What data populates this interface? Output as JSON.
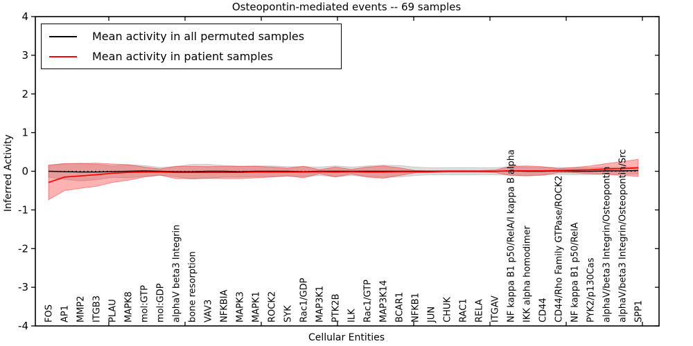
{
  "figure": {
    "title": "Osteopontin-mediated events -- 69 samples",
    "xlabel": "Cellular Entities",
    "ylabel": "Inferred Activity"
  },
  "legend": {
    "items": [
      {
        "label": "Mean activity in all permuted samples",
        "color": "#000000"
      },
      {
        "label": "Mean activity in patient samples",
        "color": "#ff0000"
      }
    ]
  },
  "chart_data": {
    "type": "line",
    "title": "Osteopontin-mediated events -- 69 samples",
    "xlabel": "Cellular Entities",
    "ylabel": "Inferred Activity",
    "ylim": [
      -4,
      4
    ],
    "yticks": [
      4,
      3,
      2,
      1,
      0,
      -1,
      -2,
      -3,
      -4
    ],
    "grid": false,
    "legend_position": "upper left",
    "zero_line": {
      "style": "dotted",
      "color": "#000000",
      "y": 0
    },
    "categories": [
      "FOS",
      "AP1",
      "MMP2",
      "ITGB3",
      "PLAU",
      "MAPK8",
      "mol:GTP",
      "mol:GDP",
      "alphaV beta3 Integrin",
      "bone resorption",
      "VAV3",
      "NFKBIA",
      "MAPK3",
      "MAPK1",
      "ROCK2",
      "SYK",
      "Rac1/GDP",
      "MAP3K1",
      "PTK2B",
      "ILK",
      "Rac1/GTP",
      "MAP3K14",
      "BCAR1",
      "NFKB1",
      "JUN",
      "CHUK",
      "RAC1",
      "RELA",
      "ITGAV",
      "NF kappa B1 p50/RelA/I kappa B alpha",
      "IKK alpha homodimer",
      "CD44",
      "CD44/Rho Family GTPase/ROCK2",
      "NF kappa B1 p50/RelA",
      "PYK2/p130Cas",
      "alphaV/beta3 Integrin/Osteopontin",
      "alphaV/beta3 Integrin/Osteopontin/Src",
      "SPP1"
    ],
    "series": [
      {
        "name": "Mean activity in all permuted samples",
        "color": "#000000",
        "band_fill": "rgba(0,0,0,0.13)",
        "band_edge": "rgba(0,0,0,0.15)",
        "values": [
          0,
          -0.01,
          -0.02,
          -0.02,
          -0.01,
          0,
          0.01,
          0,
          -0.01,
          -0.01,
          0,
          0,
          -0.01,
          0,
          0,
          0,
          -0.01,
          0,
          0,
          0,
          0,
          0,
          0,
          0,
          0,
          0,
          0,
          0,
          0,
          0.01,
          0,
          0,
          0.01,
          0,
          0,
          0.01,
          0.01,
          0.02
        ],
        "band_halfwidth": [
          0.15,
          0.2,
          0.23,
          0.2,
          0.15,
          0.17,
          0.14,
          0.1,
          0.13,
          0.19,
          0.18,
          0.15,
          0.14,
          0.14,
          0.14,
          0.12,
          0.13,
          0.11,
          0.14,
          0.11,
          0.14,
          0.16,
          0.15,
          0.11,
          0.09,
          0.09,
          0.09,
          0.09,
          0.09,
          0.11,
          0.11,
          0.1,
          0.09,
          0.09,
          0.09,
          0.09,
          0.09,
          0.09
        ]
      },
      {
        "name": "Mean activity in patient samples",
        "color": "#ff0000",
        "band_fill": "rgba(255,0,0,0.30)",
        "band_edge": "rgba(255,0,0,0.38)",
        "values": [
          -0.29,
          -0.15,
          -0.12,
          -0.09,
          -0.05,
          -0.03,
          -0.02,
          -0.02,
          -0.03,
          -0.03,
          -0.03,
          -0.03,
          -0.03,
          -0.02,
          -0.02,
          -0.02,
          -0.02,
          -0.01,
          -0.02,
          -0.01,
          -0.02,
          -0.02,
          -0.01,
          -0.01,
          -0.01,
          0,
          0,
          0,
          0,
          0.01,
          0.01,
          0.01,
          0.02,
          0.03,
          0.04,
          0.06,
          0.07,
          0.09
        ],
        "band_halfwidth": [
          0.45,
          0.35,
          0.32,
          0.3,
          0.24,
          0.2,
          0.13,
          0.08,
          0.16,
          0.16,
          0.15,
          0.16,
          0.16,
          0.15,
          0.13,
          0.1,
          0.15,
          0.05,
          0.13,
          0.06,
          0.13,
          0.16,
          0.1,
          0.03,
          0.02,
          0.02,
          0.02,
          0.02,
          0.03,
          0.12,
          0.13,
          0.11,
          0.05,
          0.07,
          0.1,
          0.14,
          0.18,
          0.22
        ]
      }
    ]
  }
}
